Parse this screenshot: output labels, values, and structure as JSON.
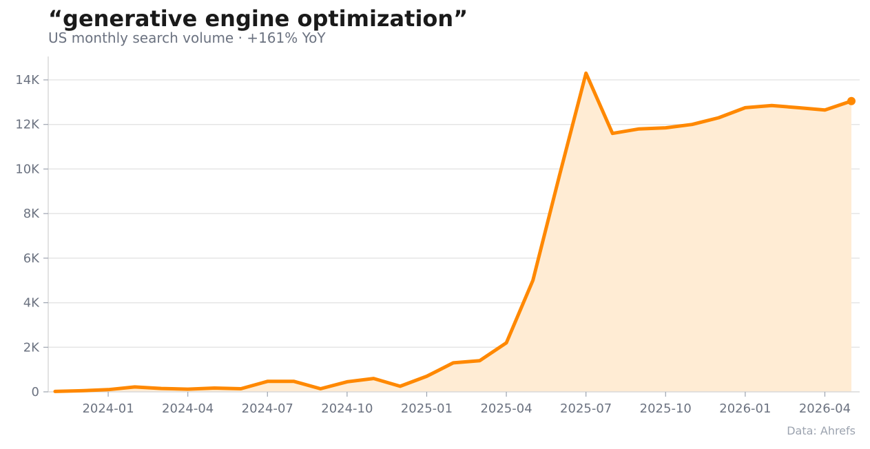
{
  "header": {
    "title": "“generative engine optimization”",
    "subtitle": "US monthly search volume · +161% YoY"
  },
  "footer": {
    "source": "Data: Ahrefs"
  },
  "colors": {
    "line": "#ff8800",
    "fill": "#ffecd4",
    "grid": "#e5e5e5",
    "axis_text": "#6b7280"
  },
  "chart_data": {
    "type": "area",
    "title": "“generative engine optimization”",
    "subtitle": "US monthly search volume · +161% YoY",
    "xlabel": "",
    "ylabel": "",
    "x": [
      "2023-11",
      "2023-12",
      "2024-01",
      "2024-02",
      "2024-03",
      "2024-04",
      "2024-05",
      "2024-06",
      "2024-07",
      "2024-08",
      "2024-09",
      "2024-10",
      "2024-11",
      "2024-12",
      "2025-01",
      "2025-02",
      "2025-03",
      "2025-04",
      "2025-05",
      "2025-06",
      "2025-07",
      "2025-08",
      "2025-09",
      "2025-10",
      "2025-11",
      "2025-12",
      "2026-01",
      "2026-02",
      "2026-03",
      "2026-04",
      "2026-05"
    ],
    "series": [
      {
        "values": [
          20,
          50,
          100,
          220,
          150,
          120,
          170,
          140,
          470,
          470,
          140,
          450,
          600,
          250,
          700,
          1300,
          1400,
          2200,
          5000,
          9700,
          14300,
          11600,
          11800,
          11850,
          12000,
          12300,
          12750,
          12850,
          12750,
          12650,
          13050
        ]
      }
    ],
    "x_ticks": [
      "2024-01",
      "2024-04",
      "2024-07",
      "2024-10",
      "2025-01",
      "2025-04",
      "2025-07",
      "2025-10",
      "2026-01",
      "2026-04"
    ],
    "y_ticks": [
      {
        "value": 0,
        "label": "0"
      },
      {
        "value": 2000,
        "label": "2K"
      },
      {
        "value": 4000,
        "label": "4K"
      },
      {
        "value": 6000,
        "label": "6K"
      },
      {
        "value": 8000,
        "label": "8K"
      },
      {
        "value": 10000,
        "label": "10K"
      },
      {
        "value": 12000,
        "label": "12K"
      },
      {
        "value": 14000,
        "label": "14K"
      }
    ],
    "ylim": [
      0,
      15000
    ],
    "xlim": [
      "2023-11",
      "2026-05"
    ],
    "grid": "horizontal",
    "legend": "none",
    "last_point_marker": true
  }
}
